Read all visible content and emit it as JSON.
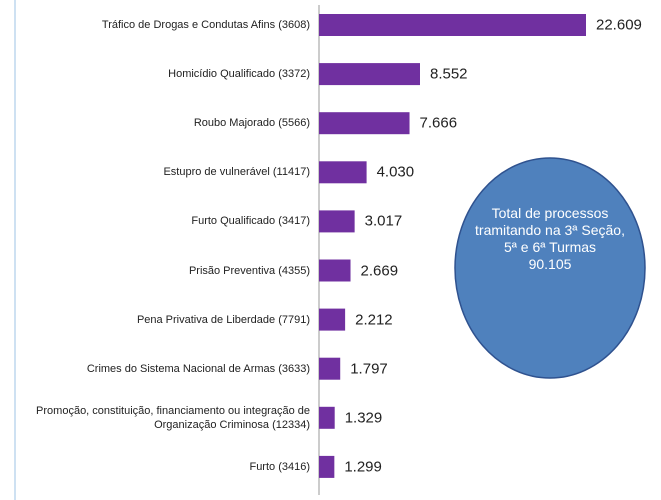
{
  "chart_data": {
    "type": "bar",
    "orientation": "horizontal",
    "categories": [
      "Tráfico de Drogas e Condutas Afins (3608)",
      "Homicídio Qualificado (3372)",
      "Roubo Majorado (5566)",
      "Estupro de vulnerável (11417)",
      "Furto Qualificado (3417)",
      "Prisão Preventiva (4355)",
      "Pena Privativa de Liberdade (7791)",
      "Crimes do Sistema Nacional de Armas (3633)",
      "Promoção, constituição, financiamento ou integração de Organização Criminosa (12334)",
      "Furto (3416)"
    ],
    "values": [
      22609,
      8552,
      7666,
      4030,
      3017,
      2669,
      2212,
      1797,
      1329,
      1299
    ],
    "value_labels": [
      "22.609",
      "8.552",
      "7.666",
      "4.030",
      "3.017",
      "2.669",
      "2.212",
      "1.797",
      "1.329",
      "1.299"
    ],
    "color": "#7030a0",
    "annotation": {
      "text": "Total de processos tramitando na 3ª Seção, 5ª e 6ª Turmas",
      "total": "90.105"
    }
  }
}
